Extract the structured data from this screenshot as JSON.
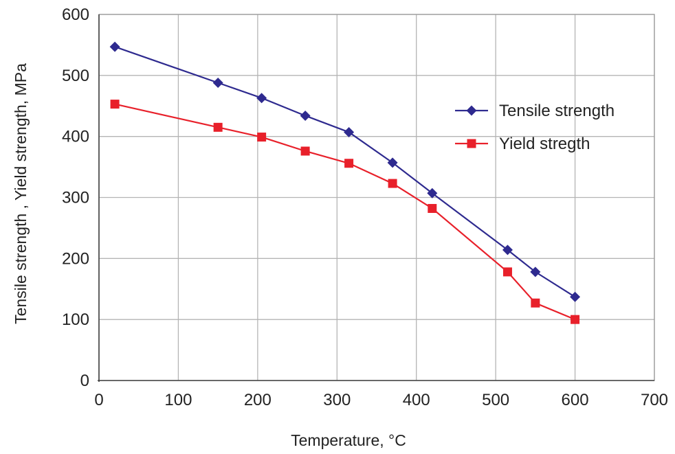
{
  "chart_data": {
    "type": "line",
    "title": "",
    "xlabel": "Temperature, °C",
    "ylabel": "Tensile strength , Yield strength, MPa",
    "xlim": [
      0,
      700
    ],
    "ylim": [
      0,
      600
    ],
    "xticks": [
      0,
      100,
      200,
      300,
      400,
      500,
      600,
      700
    ],
    "yticks": [
      0,
      100,
      200,
      300,
      400,
      500,
      600
    ],
    "grid": true,
    "legend_position": "right",
    "series": [
      {
        "name": "Tensile strength",
        "color": "#2e2a8f",
        "marker": "diamond",
        "x": [
          20,
          150,
          205,
          260,
          315,
          370,
          420,
          515,
          550,
          600
        ],
        "y": [
          547,
          488,
          463,
          434,
          407,
          357,
          307,
          214,
          178,
          137
        ]
      },
      {
        "name": "Yield stregth",
        "color": "#e8202a",
        "marker": "square",
        "x": [
          20,
          150,
          205,
          260,
          315,
          370,
          420,
          515,
          550,
          600
        ],
        "y": [
          453,
          415,
          399,
          376,
          356,
          323,
          282,
          178,
          127,
          100
        ]
      }
    ]
  }
}
